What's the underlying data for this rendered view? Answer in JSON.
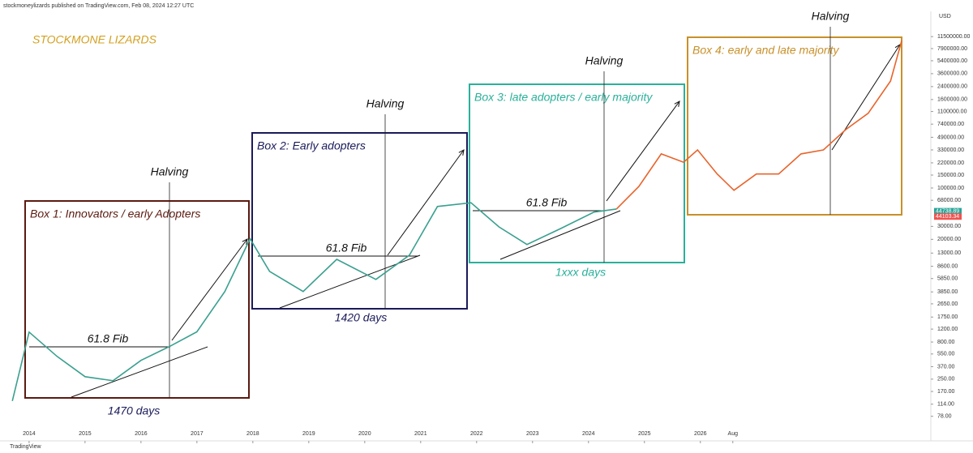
{
  "header": {
    "publisher": "stockmoneylizards published on TradingView.com, Feb 08, 2024 12:27 UTC",
    "currency": "USD",
    "footer": "TradingView"
  },
  "chart_data": {
    "type": "line",
    "log_scale": true,
    "x": [
      2013.7,
      2014.0,
      2014.5,
      2015.0,
      2015.5,
      2016.0,
      2016.5,
      2017.0,
      2017.5,
      2017.95,
      2018.3,
      2018.9,
      2019.5,
      2020.2,
      2020.8,
      2021.3,
      2021.9,
      2022.4,
      2022.9,
      2023.5,
      2024.1,
      2024.5,
      2024.9,
      2025.3,
      2025.7,
      2025.95,
      2026.3,
      2026.6,
      2027.0,
      2027.4,
      2027.8,
      2028.2,
      2028.6,
      2029.0,
      2029.4,
      2029.6
    ],
    "series": [
      {
        "color": "#3aa08f",
        "values": [
          126,
          1093,
          510,
          270,
          238,
          450,
          690,
          1100,
          3900,
          20400,
          7330,
          3900,
          10700,
          5700,
          12200,
          56000,
          63000,
          29500,
          17000,
          28000,
          47000,
          51800,
          null,
          null,
          null,
          null,
          null,
          null,
          null,
          null,
          null,
          null,
          null,
          null,
          null,
          null
        ]
      },
      {
        "color": "#e8642c",
        "values": [
          null,
          null,
          null,
          null,
          null,
          null,
          null,
          null,
          null,
          null,
          null,
          null,
          null,
          null,
          null,
          null,
          null,
          null,
          null,
          null,
          null,
          51800,
          105000,
          291000,
          224000,
          330000,
          155000,
          93000,
          155000,
          155000,
          291000,
          330000,
          624000,
          1040000,
          2860000,
          10200000
        ]
      }
    ],
    "xlim": [
      2013.48,
      2030.12
    ],
    "xticks": [
      2014,
      2015,
      2016,
      2017,
      2018,
      2019,
      2020,
      2021,
      2022,
      2023,
      2024,
      2025,
      2026,
      {
        "value": 2026.58,
        "label": "Aug"
      }
    ],
    "ylim": [
      40,
      21800000
    ],
    "yticks": [
      {
        "value": 11500000,
        "label": "11500000.00"
      },
      {
        "value": 7900000,
        "label": "7900000.00"
      },
      {
        "value": 5400000,
        "label": "5400000.00"
      },
      {
        "value": 3600000,
        "label": "3600000.00"
      },
      {
        "value": 2400000,
        "label": "2400000.00"
      },
      {
        "value": 1600000,
        "label": "1600000.00"
      },
      {
        "value": 1100000,
        "label": "1100000.00"
      },
      {
        "value": 740000,
        "label": "740000.00"
      },
      {
        "value": 490000,
        "label": "490000.00"
      },
      {
        "value": 330000,
        "label": "330000.00"
      },
      {
        "value": 220000,
        "label": "220000.00"
      },
      {
        "value": 150000,
        "label": "150000.00"
      },
      {
        "value": 100000,
        "label": "100000.00"
      },
      {
        "value": 68000,
        "label": "68000.00"
      },
      {
        "value": 30000,
        "label": "30000.00"
      },
      {
        "value": 20000,
        "label": "20000.00"
      },
      {
        "value": 13000,
        "label": "13000.00"
      },
      {
        "value": 8600,
        "label": "8600.00"
      },
      {
        "value": 5850,
        "label": "5850.00"
      },
      {
        "value": 3850,
        "label": "3850.00"
      },
      {
        "value": 2650,
        "label": "2650.00"
      },
      {
        "value": 1750,
        "label": "1750.00"
      },
      {
        "value": 1200,
        "label": "1200.00"
      },
      {
        "value": 800,
        "label": "800.00"
      },
      {
        "value": 550,
        "label": "550.00"
      },
      {
        "value": 370,
        "label": "370.00"
      },
      {
        "value": 250,
        "label": "250.00"
      },
      {
        "value": 170,
        "label": "170.00"
      },
      {
        "value": 114,
        "label": "114.00"
      },
      {
        "value": 78,
        "label": "78.00"
      }
    ],
    "price_labels": [
      44738.89,
      44103.34
    ],
    "price_label_colors": [
      "#26a69a",
      "#ef5350"
    ],
    "annotations": {
      "brand": "STOCKMONE LIZARDS",
      "boxes": [
        "Box 1: Innovators / early Adopters",
        "Box 2: Early adopters",
        "Box 3: late adopters / early majority",
        "Box 4: early and late majority"
      ],
      "box_colors": [
        "#5c1a10",
        "#1a1a5a",
        "#2ab09a",
        "#c8902a"
      ],
      "halving": [
        "Halving",
        "Halving",
        "Halving",
        "Halving"
      ],
      "fib": [
        "61.8 Fib",
        "61.8 Fib",
        "61.8 Fib"
      ],
      "days": [
        "1470 days",
        "1420 days",
        "1xxx days"
      ]
    }
  }
}
